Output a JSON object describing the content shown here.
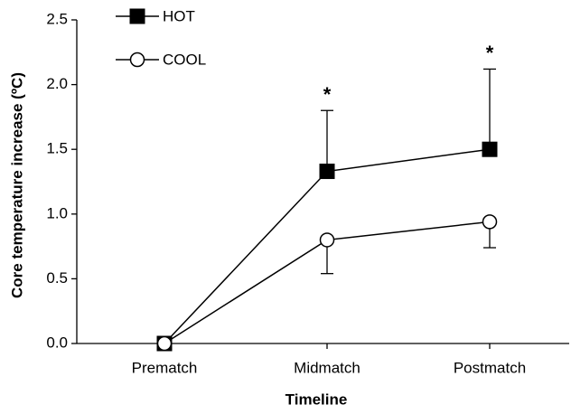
{
  "chart_data": {
    "type": "line",
    "x_label": "Timeline",
    "y_label": "Core temperature increase (ºC)",
    "categories": [
      "Prematch",
      "Midmatch",
      "Postmatch"
    ],
    "series": [
      {
        "name": "HOT",
        "color": "#000000",
        "marker": "square",
        "values": [
          0,
          1.33,
          1.5
        ],
        "errors": [
          null,
          0.47,
          0.62
        ],
        "error_direction": "up"
      },
      {
        "name": "COOL",
        "color": "#000000",
        "marker": "circle",
        "values": [
          0,
          0.8,
          0.94
        ],
        "errors": [
          null,
          0.26,
          0.2
        ],
        "error_direction": "down"
      }
    ],
    "annotations": [
      {
        "text": "*",
        "x": "Midmatch"
      },
      {
        "text": "*",
        "x": "Postmatch"
      }
    ],
    "ylim": [
      0,
      2.5
    ],
    "yticks": [
      {
        "value": 0,
        "label": "0.0"
      },
      {
        "value": 0.5,
        "label": "0.5"
      },
      {
        "value": 1,
        "label": "1.0"
      },
      {
        "value": 1.5,
        "label": "1.5"
      },
      {
        "value": 2,
        "label": "2.0"
      },
      {
        "value": 2.5,
        "label": "2.5"
      }
    ],
    "legend": "top-left"
  }
}
